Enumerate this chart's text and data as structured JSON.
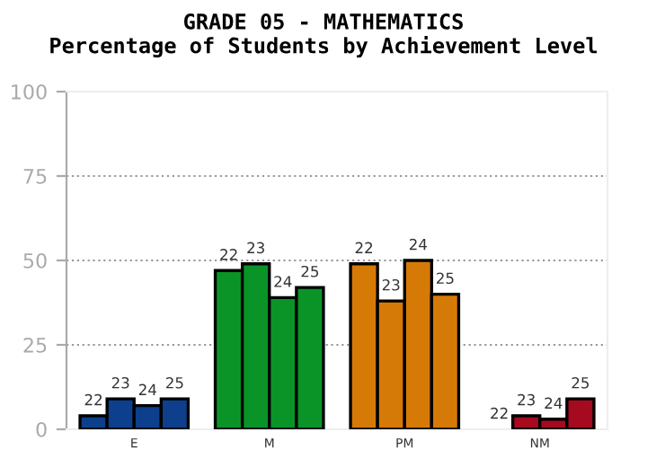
{
  "chart_data": {
    "type": "bar",
    "title": "GRADE 05 - MATHEMATICS",
    "subtitle": "Percentage of Students by Achievement Level",
    "categories": [
      "E",
      "M",
      "PM",
      "NM"
    ],
    "series": [
      {
        "name": "22",
        "colors": [
          "#0d3f8c",
          "#0a9428",
          "#d67a07",
          "#a50a1e"
        ],
        "values": [
          4,
          47,
          49,
          0
        ]
      },
      {
        "name": "23",
        "colors": [
          "#0d3f8c",
          "#0a9428",
          "#d67a07",
          "#a50a1e"
        ],
        "values": [
          9,
          49,
          38,
          4
        ]
      },
      {
        "name": "24",
        "colors": [
          "#0d3f8c",
          "#0a9428",
          "#d67a07",
          "#a50a1e"
        ],
        "values": [
          7,
          39,
          50,
          3
        ]
      },
      {
        "name": "25",
        "colors": [
          "#0d3f8c",
          "#0a9428",
          "#d67a07",
          "#a50a1e"
        ],
        "values": [
          9,
          42,
          40,
          9
        ]
      }
    ],
    "ylim": [
      0,
      100
    ],
    "yticks": [
      0,
      25,
      50,
      75,
      100
    ],
    "grid": "y",
    "legend": false
  }
}
